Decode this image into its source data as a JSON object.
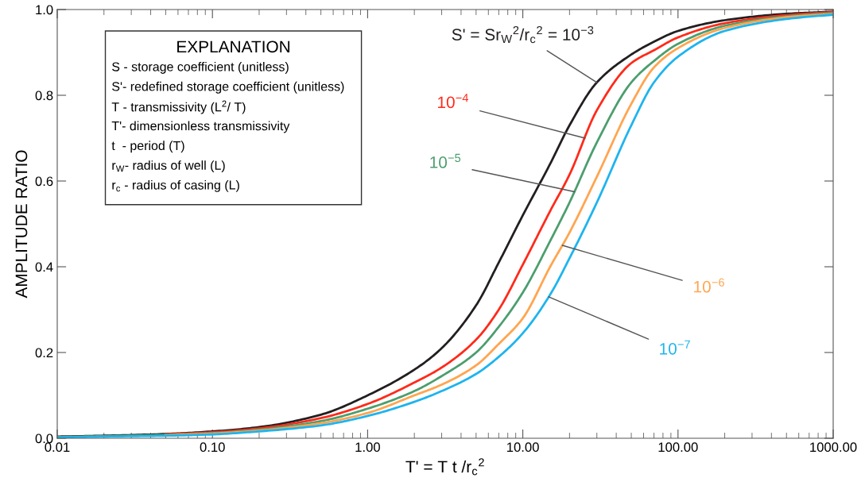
{
  "chart_data": {
    "type": "line",
    "xlabel": "T' = T t /r$_{c}$$^{2}$",
    "ylabel": "AMPLITUDE RATIO",
    "log": "x",
    "x": [
      0.01,
      0.02,
      0.05,
      0.1,
      0.2,
      0.5,
      1,
      2,
      3,
      5,
      7,
      10,
      15,
      20,
      30,
      50,
      70,
      100,
      200,
      500,
      1000
    ],
    "series": [
      {
        "name": "S' = Sr$_{W}$$^{2}$/r$_{c}$$^{2}$ = 10$^{−3}$",
        "color": "#231f20",
        "values": [
          0.004,
          0.006,
          0.01,
          0.016,
          0.026,
          0.055,
          0.1,
          0.16,
          0.21,
          0.31,
          0.41,
          0.52,
          0.64,
          0.73,
          0.83,
          0.895,
          0.925,
          0.95,
          0.975,
          0.99,
          0.995
        ]
      },
      {
        "name": "10$^{−4}$",
        "color": "#ff2a1a",
        "values": [
          null,
          null,
          0.009,
          0.014,
          0.023,
          0.047,
          0.08,
          0.13,
          0.165,
          0.23,
          0.3,
          0.405,
          0.53,
          0.615,
          0.765,
          0.875,
          0.905,
          0.935,
          0.968,
          0.987,
          0.994
        ]
      },
      {
        "name": "10$^{−5}$",
        "color": "#4c9e6e",
        "values": [
          0.003,
          0.005,
          0.008,
          0.012,
          0.02,
          0.04,
          0.069,
          0.11,
          0.145,
          0.2,
          0.26,
          0.34,
          0.46,
          0.55,
          0.69,
          0.83,
          0.88,
          0.92,
          0.962,
          0.984,
          0.992
        ]
      },
      {
        "name": "10$^{−6}$",
        "color": "#ffa54f",
        "values": [
          null,
          null,
          0.007,
          0.011,
          0.018,
          0.035,
          0.059,
          0.1,
          0.125,
          0.17,
          0.22,
          0.28,
          0.4,
          0.48,
          0.61,
          0.78,
          0.865,
          0.91,
          0.957,
          0.982,
          0.99
        ]
      },
      {
        "name": "10$^{−7}$",
        "color": "#1eb4ee",
        "values": [
          0.002,
          0.004,
          0.006,
          0.009,
          0.016,
          0.03,
          0.052,
          0.085,
          0.11,
          0.15,
          0.19,
          0.245,
          0.335,
          0.42,
          0.55,
          0.73,
          0.83,
          0.89,
          0.95,
          0.978,
          0.988
        ]
      }
    ],
    "xlim": [
      0.01,
      1000
    ],
    "ylim": [
      0,
      1.0
    ],
    "xticks": [
      {
        "value": 0.01,
        "label": "0.01"
      },
      {
        "value": 0.1,
        "label": "0.10"
      },
      {
        "value": 1,
        "label": "1.00"
      },
      {
        "value": 10,
        "label": "10.00"
      },
      {
        "value": 100,
        "label": "100.00"
      },
      {
        "value": 1000,
        "label": "1000.00"
      }
    ],
    "yticks": [
      {
        "value": 0,
        "label": "0.0"
      },
      {
        "value": 0.2,
        "label": "0.2"
      },
      {
        "value": 0.4,
        "label": "0.4"
      },
      {
        "value": 0.6,
        "label": "0.6"
      },
      {
        "value": 0.8,
        "label": "0.8"
      },
      {
        "value": 1.0,
        "label": "1.0"
      }
    ],
    "grid": false,
    "legend": false,
    "marker": "none",
    "line_style": "solid",
    "annotations": [
      "EXPLANATION",
      "S - storage coefficient (unitless)",
      "S'- redefined storage coefficient (unitless)",
      "T - transmissivity (L$^{2}$/ T)",
      "T'- dimensionless transmissivity",
      "t  - period (T)",
      "r$_{W}$- radius of well (L)",
      "r$_{c}$ - radius of casing (L)"
    ]
  }
}
